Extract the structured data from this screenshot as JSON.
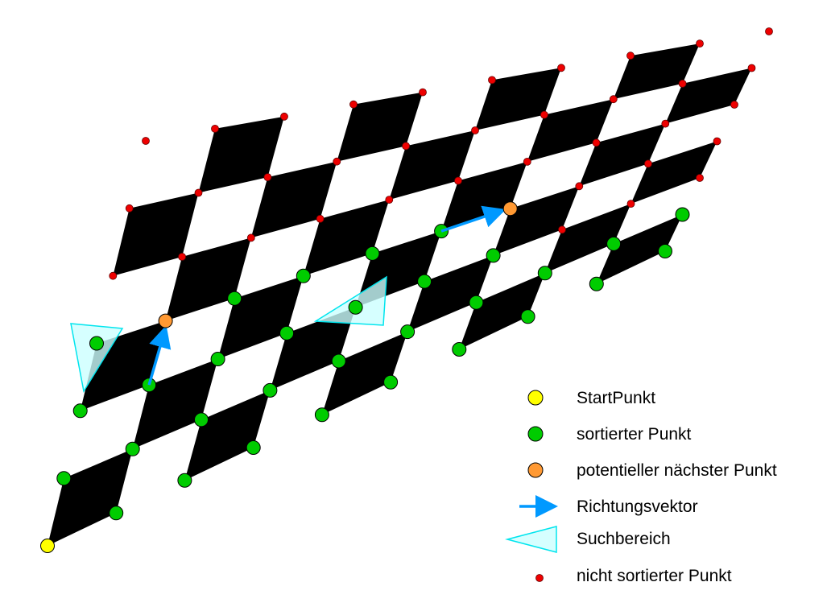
{
  "legend": {
    "items": [
      {
        "key": "start",
        "label": "StartPunkt",
        "icon": "yellow-circle-icon",
        "color": "#ffff00"
      },
      {
        "key": "sorted",
        "label": "sortierter Punkt",
        "icon": "green-circle-icon",
        "color": "#00cc00"
      },
      {
        "key": "candidate",
        "label": "potentieller nächster Punkt",
        "icon": "orange-circle-icon",
        "color": "#ff9933"
      },
      {
        "key": "direction",
        "label": "Richtungsvektor",
        "icon": "blue-arrow-icon",
        "color": "#0099ff"
      },
      {
        "key": "search",
        "label": "Suchbereich",
        "icon": "cyan-triangle-icon",
        "color": "#00e5ee"
      },
      {
        "key": "unsorted",
        "label": "nicht sortierter Punkt",
        "icon": "red-dot-icon",
        "color": "#ee0000"
      }
    ]
  },
  "colors": {
    "square": "#000000",
    "background": "#ffffff",
    "sorted": "#00cc00",
    "unsorted": "#ee0000",
    "start": "#ffff00",
    "candidate": "#ff9933",
    "arrow": "#0099ff",
    "search_fill": "#ccffff",
    "search_stroke": "#00e5ee"
  }
}
